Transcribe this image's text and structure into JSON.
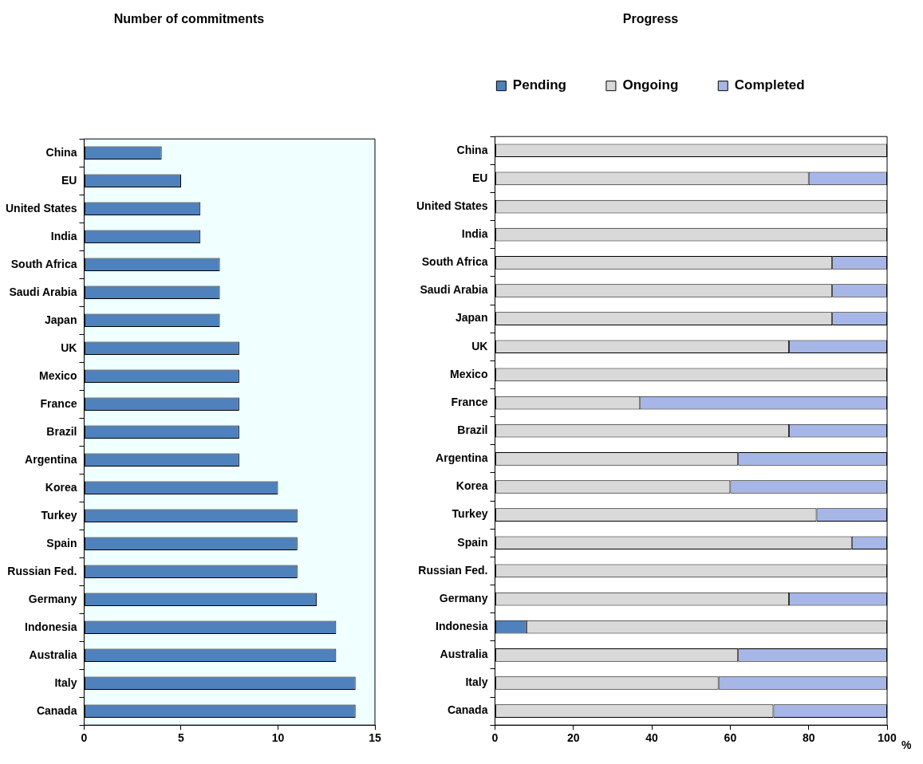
{
  "chart_data": [
    {
      "type": "bar",
      "orientation": "horizontal",
      "title": "Number of commitments",
      "categories": [
        "China",
        "EU",
        "United States",
        "India",
        "South Africa",
        "Saudi Arabia",
        "Japan",
        "UK",
        "Mexico",
        "France",
        "Brazil",
        "Argentina",
        "Korea",
        "Turkey",
        "Spain",
        "Russian Fed.",
        "Germany",
        "Indonesia",
        "Australia",
        "Italy",
        "Canada"
      ],
      "values": [
        4,
        5,
        6,
        6,
        7,
        7,
        7,
        8,
        8,
        8,
        8,
        8,
        10,
        11,
        11,
        11,
        12,
        13,
        13,
        14,
        14
      ],
      "color": "#4f81bd",
      "xlim": [
        0,
        15
      ],
      "xticks": [
        0,
        5,
        10,
        15
      ],
      "grid": false,
      "legend": false
    },
    {
      "type": "bar",
      "orientation": "horizontal",
      "stacked": true,
      "title": "Progress",
      "xlabel": "%",
      "categories": [
        "China",
        "EU",
        "United States",
        "India",
        "South Africa",
        "Saudi Arabia",
        "Japan",
        "UK",
        "Mexico",
        "France",
        "Brazil",
        "Argentina",
        "Korea",
        "Turkey",
        "Spain",
        "Russian Fed.",
        "Germany",
        "Indonesia",
        "Australia",
        "Italy",
        "Canada"
      ],
      "series": [
        {
          "name": "Pending",
          "color": "#4f81bd",
          "values": [
            0,
            0,
            0,
            0,
            0,
            0,
            0,
            0,
            0,
            0,
            0,
            0,
            0,
            0,
            0,
            0,
            0,
            8,
            0,
            0,
            0
          ]
        },
        {
          "name": "Ongoing",
          "color": "#d9d9d9",
          "values": [
            100,
            80,
            100,
            100,
            86,
            86,
            86,
            75,
            100,
            37,
            75,
            62,
            60,
            82,
            91,
            100,
            75,
            92,
            62,
            57,
            71
          ]
        },
        {
          "name": "Completed",
          "color": "#a6b6e6",
          "values": [
            0,
            20,
            0,
            0,
            14,
            14,
            14,
            25,
            0,
            63,
            25,
            38,
            40,
            18,
            9,
            0,
            25,
            0,
            38,
            43,
            29
          ]
        }
      ],
      "xlim": [
        0,
        100
      ],
      "xticks": [
        0,
        20,
        40,
        60,
        80,
        100
      ],
      "grid": false,
      "legend": "top"
    }
  ]
}
